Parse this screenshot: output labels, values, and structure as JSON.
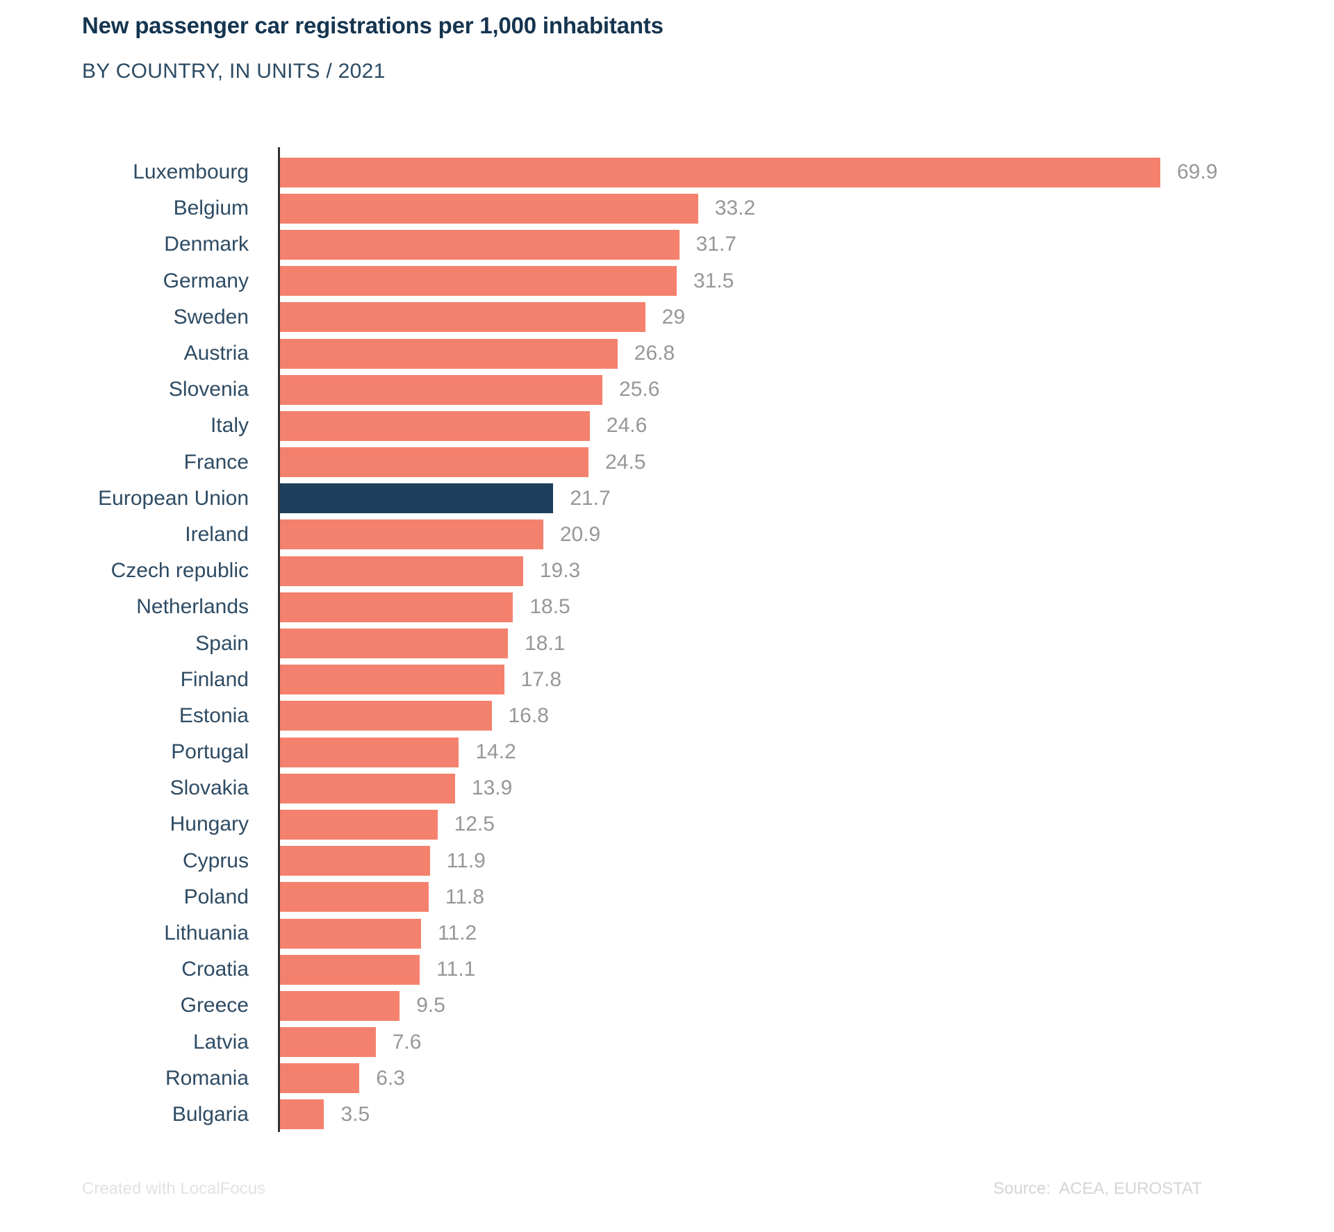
{
  "page": {
    "title": "New passenger car registrations per 1,000 inhabitants",
    "subtitle": "BY COUNTRY, IN UNITS / 2021",
    "footer": {
      "credit": "Created with LocalFocus",
      "source_label": "Source:",
      "source_value": "ACEA, EUROSTAT"
    }
  },
  "colors": {
    "bar": "#f4816e",
    "highlight_bar": "#1d3f5c",
    "label": "#2e4b63",
    "value": "#95979a",
    "axis": "#2e3338",
    "title": "#15344f"
  },
  "chart_data": {
    "type": "bar",
    "orientation": "horizontal",
    "title": "New passenger car registrations per 1,000 inhabitants",
    "subtitle": "BY COUNTRY, IN UNITS / 2021",
    "year": "2021",
    "unit": "units per 1,000 inhabitants",
    "xlim": [
      0,
      70
    ],
    "grid": false,
    "legend": "none",
    "highlight_category": "European Union",
    "categories": [
      "Luxembourg",
      "Belgium",
      "Denmark",
      "Germany",
      "Sweden",
      "Austria",
      "Slovenia",
      "Italy",
      "France",
      "European Union",
      "Ireland",
      "Czech republic",
      "Netherlands",
      "Spain",
      "Finland",
      "Estonia",
      "Portugal",
      "Slovakia",
      "Hungary",
      "Cyprus",
      "Poland",
      "Lithuania",
      "Croatia",
      "Greece",
      "Latvia",
      "Romania",
      "Bulgaria"
    ],
    "values": [
      69.9,
      33.2,
      31.7,
      31.5,
      29,
      26.8,
      25.6,
      24.6,
      24.5,
      21.7,
      20.9,
      19.3,
      18.5,
      18.1,
      17.8,
      16.8,
      14.2,
      13.9,
      12.5,
      11.9,
      11.8,
      11.2,
      11.1,
      9.5,
      7.6,
      6.3,
      3.5
    ]
  }
}
